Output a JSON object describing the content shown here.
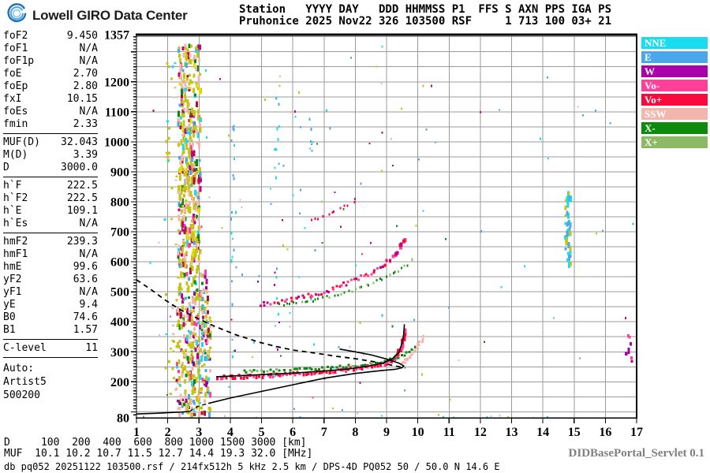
{
  "header": {
    "brand": "Lowell GIRO Data Center",
    "station_line1": "Station   YYYY DAY   DDD HHMMSS P1  FFS S AXN PPS IGA PS",
    "station_line2": "Pruhonice 2025 Nov22 326 103500 RSF     1 713 100 03+ 21"
  },
  "params": {
    "groups": [
      {
        "rows": [
          [
            "foF2",
            "9.450"
          ],
          [
            "foF1",
            "N/A"
          ],
          [
            "foF1p",
            "N/A"
          ],
          [
            "foE",
            "2.70"
          ],
          [
            "foEp",
            "2.80"
          ],
          [
            "fxI",
            "10.15"
          ],
          [
            "foEs",
            "N/A"
          ],
          [
            "fmin",
            "2.33"
          ]
        ]
      },
      {
        "rows": [
          [
            "MUF(D)",
            "32.043"
          ],
          [
            "M(D)",
            "3.39"
          ],
          [
            "D",
            "3000.0"
          ]
        ]
      },
      {
        "rows": [
          [
            "h`F",
            "222.5"
          ],
          [
            "h`F2",
            "222.5"
          ],
          [
            "h`E",
            "109.1"
          ],
          [
            "h`Es",
            "N/A"
          ]
        ]
      },
      {
        "rows": [
          [
            "hmF2",
            "239.3"
          ],
          [
            "hmF1",
            "N/A"
          ],
          [
            "hmE",
            "99.6"
          ],
          [
            "yF2",
            "63.6"
          ],
          [
            "yF1",
            "N/A"
          ],
          [
            "yE",
            "9.4"
          ],
          [
            "B0",
            "74.6"
          ],
          [
            "B1",
            "1.57"
          ]
        ]
      },
      {
        "rows": [
          [
            "C-level",
            "11"
          ]
        ]
      }
    ],
    "auto": [
      "Auto:",
      "Artist5",
      "500200"
    ]
  },
  "legend": [
    {
      "label": "NNE",
      "color": "#19DCF0"
    },
    {
      "label": "E",
      "color": "#4BA6EA"
    },
    {
      "label": "W",
      "color": "#AA00AA"
    },
    {
      "label": "Vo-",
      "color": "#FF4098"
    },
    {
      "label": "Vo+",
      "color": "#FA0A3C"
    },
    {
      "label": "SSW",
      "color": "#F2B6AC"
    },
    {
      "label": "X-",
      "color": "#0B8A0B"
    },
    {
      "label": "X+",
      "color": "#8CB964"
    }
  ],
  "footer": {
    "d_row": "D     100  200  400  600  800 1000 1500 3000 [km]",
    "muf_row": "MUF  10.1 10.2 10.7 11.5 12.7 14.4 19.3 32.0 [MHz]",
    "db_row": "db pq052 20251122 103500.rsf / 214fx512h 5 kHz 2.5 km / DPS-4D PQ052 50 / 50.0 N 14.6 E",
    "servlet": "DIDBasePortal_Servlet 0.1"
  },
  "chart_data": {
    "type": "scatter",
    "title": "Pruhonice ionogram 2025 Nov22 326 103500",
    "xlabel": "[MHz]",
    "ylabel": "[km]",
    "x_axis": {
      "min": 1,
      "max": 17,
      "ticks": [
        1,
        2,
        3,
        4,
        5,
        6,
        7,
        8,
        9,
        10,
        11,
        12,
        13,
        14,
        15,
        16,
        17
      ],
      "grid_step": 1
    },
    "y_axis": {
      "min": 80,
      "max": 1357,
      "labels": [
        [
          1357,
          "1357"
        ],
        [
          1200,
          "1200"
        ],
        [
          1100,
          "1100"
        ],
        [
          1000,
          "1000"
        ],
        [
          900,
          "900"
        ],
        [
          800,
          "800"
        ],
        [
          700,
          "700"
        ],
        [
          600,
          "600"
        ],
        [
          500,
          "500"
        ],
        [
          400,
          "400"
        ],
        [
          300,
          "300"
        ],
        [
          200,
          "200"
        ],
        [
          80,
          "80"
        ]
      ],
      "grid_step_km": 50,
      "minor_tick_km": 10
    },
    "grid_color": "#9B9B9B",
    "palette": {
      "olive": "#C4C414",
      "salmon": "#F2B6AC",
      "magenta": "#C4008E",
      "purple": "#8A00B4",
      "darkred": "#B01038",
      "cyan": "#19DCF0",
      "blue": "#4BA6EA",
      "green": "#0B8A0B",
      "lgreen": "#8CB964",
      "pink": "#FF4098",
      "red": "#FA0A3C",
      "yellow": "#E0E000",
      "w": "#AA00AA"
    },
    "curves": [
      {
        "name": "transmission-curve",
        "dash": "6 5",
        "width": 1.8,
        "points": [
          [
            1.0,
            540
          ],
          [
            1.5,
            505
          ],
          [
            1.9,
            474
          ],
          [
            2.4,
            440
          ],
          [
            2.9,
            414
          ],
          [
            3.5,
            385
          ],
          [
            4.2,
            356
          ],
          [
            5.0,
            330
          ],
          [
            5.5,
            317
          ],
          [
            6.0,
            306
          ],
          [
            6.7,
            296
          ],
          [
            7.4,
            285
          ],
          [
            8.0,
            277
          ],
          [
            8.6,
            267
          ],
          [
            9.0,
            259
          ],
          [
            9.6,
            246
          ]
        ]
      },
      {
        "name": "profile-e-layer",
        "dash": null,
        "width": 1.6,
        "points": [
          [
            1.0,
            93
          ],
          [
            1.6,
            95
          ],
          [
            2.2,
            98
          ],
          [
            2.55,
            100
          ],
          [
            2.7,
            101
          ]
        ]
      },
      {
        "name": "profile-valley",
        "dash": "5 4",
        "width": 1.4,
        "points": [
          [
            2.7,
            101
          ],
          [
            2.8,
            109
          ],
          [
            2.95,
            117
          ],
          [
            3.15,
            124
          ],
          [
            3.3,
            128
          ]
        ]
      },
      {
        "name": "profile-f-layer",
        "dash": null,
        "width": 1.6,
        "points": [
          [
            3.3,
            128
          ],
          [
            4.0,
            146
          ],
          [
            5.0,
            168
          ],
          [
            6.0,
            190
          ],
          [
            7.0,
            212
          ],
          [
            8.0,
            228
          ],
          [
            8.8,
            237
          ],
          [
            9.3,
            242
          ],
          [
            9.5,
            247
          ],
          [
            9.55,
            253
          ],
          [
            9.4,
            262
          ],
          [
            9.0,
            276
          ],
          [
            8.5,
            290
          ],
          [
            8.0,
            300
          ],
          [
            7.5,
            309
          ]
        ]
      },
      {
        "name": "trace-fit",
        "dash": null,
        "width": 1.6,
        "points": [
          [
            3.55,
            217
          ],
          [
            4.2,
            220
          ],
          [
            5.0,
            224
          ],
          [
            6.0,
            229
          ],
          [
            7.0,
            236
          ],
          [
            7.8,
            243
          ],
          [
            8.4,
            252
          ],
          [
            8.9,
            263
          ],
          [
            9.2,
            278
          ],
          [
            9.4,
            300
          ],
          [
            9.5,
            330
          ],
          [
            9.55,
            360
          ],
          [
            9.57,
            392
          ]
        ]
      }
    ],
    "arcs": [
      {
        "name": "f-trace-o",
        "colors": [
          "red",
          "red",
          "pink"
        ],
        "w": 3,
        "hbase": 4,
        "n": 95,
        "jitter": 5,
        "grow": true,
        "path": [
          [
            3.55,
            218
          ],
          [
            4.5,
            222
          ],
          [
            5.5,
            227
          ],
          [
            6.5,
            233
          ],
          [
            7.3,
            240
          ],
          [
            8.0,
            248
          ],
          [
            8.5,
            257
          ],
          [
            8.9,
            268
          ],
          [
            9.15,
            282
          ],
          [
            9.35,
            305
          ],
          [
            9.45,
            330
          ],
          [
            9.5,
            355
          ],
          [
            9.53,
            385
          ]
        ]
      },
      {
        "name": "f-trace-x",
        "colors": [
          "green",
          "green",
          "lgreen"
        ],
        "w": 3,
        "hbase": 3,
        "n": 60,
        "jitter": 3,
        "grow": false,
        "path": [
          [
            4.35,
            238
          ],
          [
            5.2,
            241
          ],
          [
            6.2,
            245
          ],
          [
            7.2,
            251
          ],
          [
            8.0,
            258
          ],
          [
            8.6,
            267
          ],
          [
            9.1,
            278
          ],
          [
            9.5,
            293
          ],
          [
            9.8,
            312
          ],
          [
            9.95,
            330
          ]
        ]
      },
      {
        "name": "f-trace-ssw",
        "colors": [
          "salmon"
        ],
        "w": 3,
        "hbase": 3,
        "n": 22,
        "jitter": 3,
        "grow": false,
        "path": [
          [
            9.45,
            262
          ],
          [
            9.6,
            276
          ],
          [
            9.75,
            292
          ],
          [
            9.9,
            312
          ],
          [
            10.05,
            335
          ],
          [
            10.15,
            358
          ]
        ]
      },
      {
        "name": "second-hop-o",
        "colors": [
          "red",
          "pink",
          "magenta"
        ],
        "w": 3,
        "hbase": 3,
        "n": 62,
        "jitter": 5,
        "grow": true,
        "path": [
          [
            4.9,
            462
          ],
          [
            5.6,
            472
          ],
          [
            6.3,
            486
          ],
          [
            7.0,
            505
          ],
          [
            7.6,
            527
          ],
          [
            8.2,
            553
          ],
          [
            8.7,
            582
          ],
          [
            9.1,
            614
          ],
          [
            9.4,
            650
          ],
          [
            9.55,
            685
          ]
        ]
      },
      {
        "name": "second-hop-x",
        "colors": [
          "green",
          "lgreen"
        ],
        "w": 2,
        "hbase": 3,
        "n": 40,
        "jitter": 4,
        "grow": false,
        "path": [
          [
            5.5,
            458
          ],
          [
            6.2,
            468
          ],
          [
            7.0,
            484
          ],
          [
            7.8,
            506
          ],
          [
            8.5,
            532
          ],
          [
            9.1,
            560
          ],
          [
            9.6,
            592
          ],
          [
            9.9,
            620
          ]
        ]
      },
      {
        "name": "third-hop-bits",
        "colors": [
          "red"
        ],
        "w": 2,
        "hbase": 3,
        "n": 12,
        "jitter": 5,
        "grow": false,
        "path": [
          [
            6.5,
            735
          ],
          [
            7.0,
            760
          ],
          [
            7.6,
            788
          ],
          [
            8.1,
            812
          ]
        ]
      }
    ],
    "clusters": [
      {
        "name": "spread-column-upper",
        "f": [
          2.3,
          3.02
        ],
        "h": [
          580,
          1330
        ],
        "n": 430,
        "w": 3,
        "hmin": 3,
        "hmax": 9,
        "colors": [
          [
            "olive",
            40
          ],
          [
            "salmon",
            22
          ],
          [
            "magenta",
            9
          ],
          [
            "cyan",
            6
          ],
          [
            "blue",
            7
          ],
          [
            "green",
            5
          ],
          [
            "darkred",
            4
          ],
          [
            "pink",
            3
          ],
          [
            "yellow",
            4
          ]
        ]
      },
      {
        "name": "spread-column-lower",
        "f": [
          2.25,
          3.35
        ],
        "h": [
          95,
          580
        ],
        "n": 340,
        "w": 3,
        "hmin": 3,
        "hmax": 8,
        "colors": [
          [
            "olive",
            36
          ],
          [
            "salmon",
            20
          ],
          [
            "magenta",
            12
          ],
          [
            "cyan",
            7
          ],
          [
            "blue",
            5
          ],
          [
            "green",
            6
          ],
          [
            "darkred",
            5
          ],
          [
            "purple",
            4
          ],
          [
            "pink",
            5
          ]
        ]
      },
      {
        "name": "column-left-fringe",
        "f": [
          1.85,
          2.28
        ],
        "h": [
          130,
          1270
        ],
        "n": 42,
        "w": 3,
        "hmin": 2,
        "hmax": 4,
        "colors": [
          [
            "olive",
            55
          ],
          [
            "salmon",
            30
          ],
          [
            "cyan",
            15
          ]
        ]
      },
      {
        "name": "strip-4mhz",
        "f": [
          4.0,
          4.15
        ],
        "h": [
          280,
          1160
        ],
        "n": 22,
        "w": 2,
        "hmin": 2,
        "hmax": 5,
        "colors": [
          [
            "blue",
            50
          ],
          [
            "cyan",
            30
          ],
          [
            "purple",
            20
          ]
        ]
      },
      {
        "name": "strip-5p5mhz-high",
        "f": [
          5.38,
          5.55
        ],
        "h": [
          880,
          1160
        ],
        "n": 12,
        "w": 2,
        "hmin": 2,
        "hmax": 4,
        "colors": [
          [
            "cyan",
            60
          ],
          [
            "blue",
            40
          ]
        ]
      },
      {
        "name": "strip-5p5mhz-low",
        "f": [
          5.38,
          5.52
        ],
        "h": [
          220,
          680
        ],
        "n": 10,
        "w": 2,
        "hmin": 2,
        "hmax": 4,
        "colors": [
          [
            "cyan",
            50
          ],
          [
            "blue",
            30
          ],
          [
            "magenta",
            20
          ]
        ]
      },
      {
        "name": "strip-6p5mhz",
        "f": [
          6.5,
          6.62
        ],
        "h": [
          930,
          1120
        ],
        "n": 7,
        "w": 2,
        "hmin": 2,
        "hmax": 4,
        "colors": [
          [
            "blue",
            60
          ],
          [
            "cyan",
            40
          ]
        ]
      },
      {
        "name": "column-14p8mhz",
        "f": [
          14.68,
          14.86
        ],
        "h": [
          595,
          835
        ],
        "n": 46,
        "w": 3,
        "hmin": 3,
        "hmax": 8,
        "colors": [
          [
            "cyan",
            55
          ],
          [
            "blue",
            23
          ],
          [
            "olive",
            22
          ]
        ]
      },
      {
        "name": "strip-16p7mhz",
        "f": [
          16.62,
          16.82
        ],
        "h": [
          272,
          362
        ],
        "n": 9,
        "w": 3,
        "hmin": 3,
        "hmax": 5,
        "colors": [
          [
            "w",
            55
          ],
          [
            "pink",
            30
          ],
          [
            "magenta",
            15
          ]
        ]
      },
      {
        "name": "sparse-left",
        "f": [
          1.05,
          10.2
        ],
        "h": [
          85,
          1345
        ],
        "n": 110,
        "w": 2,
        "hmin": 2,
        "hmax": 3,
        "colors": [
          [
            "blue",
            20
          ],
          [
            "cyan",
            18
          ],
          [
            "olive",
            20
          ],
          [
            "salmon",
            15
          ],
          [
            "magenta",
            7
          ],
          [
            "pink",
            6
          ],
          [
            "green",
            5
          ],
          [
            "purple",
            4
          ],
          [
            "darkred",
            5
          ]
        ]
      },
      {
        "name": "sparse-right",
        "f": [
          10.2,
          16.9
        ],
        "h": [
          85,
          1300
        ],
        "n": 26,
        "w": 2,
        "hmin": 2,
        "hmax": 3,
        "colors": [
          [
            "blue",
            30
          ],
          [
            "cyan",
            28
          ],
          [
            "olive",
            14
          ],
          [
            "salmon",
            10
          ],
          [
            "magenta",
            8
          ],
          [
            "green",
            10
          ]
        ]
      },
      {
        "name": "bottom-specks",
        "f": [
          3.4,
          15.2
        ],
        "h": [
          82,
          96
        ],
        "n": 12,
        "w": 2,
        "hmin": 2,
        "hmax": 3,
        "colors": [
          [
            "cyan",
            40
          ],
          [
            "olive",
            30
          ],
          [
            "salmon",
            30
          ]
        ]
      }
    ]
  }
}
